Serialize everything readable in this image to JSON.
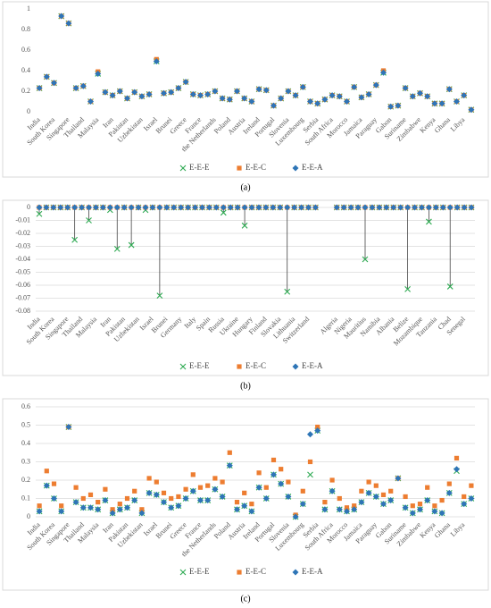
{
  "chart_data": [
    {
      "type": "scatter",
      "caption": "(a)",
      "grid": false,
      "ylim": [
        0,
        1
      ],
      "yticks": [
        0,
        0.2,
        0.4,
        0.6,
        0.8,
        1
      ],
      "categories": [
        "India",
        null,
        "South Korea",
        null,
        "Singapore",
        null,
        "Thailand",
        null,
        "Malaysia",
        null,
        "Iran",
        null,
        "Pakistan",
        null,
        "Uzbekistan",
        null,
        "Israel",
        null,
        "Brunei",
        null,
        "Greece",
        null,
        "France",
        null,
        "the Netherlands",
        null,
        "Poland",
        null,
        "Austria",
        null,
        "Ireland",
        null,
        "Portugal",
        null,
        "Slovenia",
        null,
        "Luxembourg",
        null,
        "Serbia",
        null,
        "South Africa",
        null,
        "Morocco",
        null,
        "Jamaica",
        null,
        "Paraguay",
        null,
        "Gabon",
        null,
        "Suriname",
        null,
        "Zimbabwe",
        null,
        "Kenya",
        null,
        "Ghana",
        null,
        "Libya",
        null
      ],
      "series": [
        {
          "name": "E-E-E",
          "color": "#2eaa52",
          "values": [
            0.23,
            0.34,
            0.28,
            0.93,
            0.86,
            0.23,
            0.25,
            0.1,
            0.37,
            0.19,
            0.16,
            0.2,
            0.13,
            0.19,
            0.15,
            0.17,
            0.49,
            0.18,
            0.19,
            0.23,
            0.29,
            0.17,
            0.16,
            0.17,
            0.2,
            0.13,
            0.12,
            0.2,
            0.13,
            0.1,
            0.22,
            0.21,
            0.06,
            0.13,
            0.2,
            0.16,
            0.24,
            0.1,
            0.08,
            0.12,
            0.16,
            0.15,
            0.1,
            0.24,
            0.14,
            0.17,
            0.26,
            0.38,
            0.05,
            0.06,
            0.23,
            0.15,
            0.18,
            0.15,
            0.08,
            0.08,
            0.22,
            0.1,
            0.16,
            0.02
          ]
        },
        {
          "name": "E-E-C",
          "color": "#ed7d31",
          "values": [
            0.23,
            0.34,
            0.28,
            0.93,
            0.86,
            0.23,
            0.25,
            0.1,
            0.39,
            0.19,
            0.16,
            0.2,
            0.13,
            0.19,
            0.15,
            0.17,
            0.51,
            0.18,
            0.19,
            0.23,
            0.29,
            0.17,
            0.16,
            0.17,
            0.2,
            0.13,
            0.12,
            0.2,
            0.13,
            0.1,
            0.22,
            0.21,
            0.06,
            0.13,
            0.2,
            0.16,
            0.24,
            0.1,
            0.08,
            0.12,
            0.16,
            0.15,
            0.1,
            0.24,
            0.14,
            0.17,
            0.26,
            0.4,
            0.05,
            0.06,
            0.23,
            0.15,
            0.18,
            0.15,
            0.08,
            0.08,
            0.22,
            0.1,
            0.16,
            0.02
          ]
        },
        {
          "name": "E-E-A",
          "color": "#2e75b6",
          "values": [
            0.23,
            0.34,
            0.28,
            0.93,
            0.86,
            0.23,
            0.25,
            0.1,
            0.37,
            0.19,
            0.16,
            0.2,
            0.13,
            0.19,
            0.15,
            0.17,
            0.49,
            0.18,
            0.19,
            0.23,
            0.29,
            0.17,
            0.16,
            0.17,
            0.2,
            0.13,
            0.12,
            0.2,
            0.13,
            0.1,
            0.22,
            0.21,
            0.06,
            0.13,
            0.2,
            0.16,
            0.24,
            0.1,
            0.08,
            0.12,
            0.16,
            0.15,
            0.1,
            0.24,
            0.14,
            0.17,
            0.26,
            0.38,
            0.05,
            0.06,
            0.23,
            0.15,
            0.18,
            0.15,
            0.08,
            0.08,
            0.22,
            0.1,
            0.16,
            0.02
          ]
        }
      ]
    },
    {
      "type": "scatter",
      "caption": "(b)",
      "grid": true,
      "drop_lines": true,
      "ylim": [
        -0.08,
        0
      ],
      "yticks": [
        0,
        -0.01,
        -0.02,
        -0.03,
        -0.04,
        -0.05,
        -0.06,
        -0.07,
        -0.08
      ],
      "categories": [
        "India",
        null,
        "South Korea",
        null,
        "Singapore",
        null,
        "Thailand",
        null,
        "Malaysia",
        null,
        "Iran",
        null,
        "Pakistan",
        null,
        "Uzbekistan",
        null,
        "Israel",
        null,
        "Brunei",
        null,
        "Germany",
        null,
        "Italy",
        null,
        "Spain",
        null,
        "Russia",
        null,
        "Ukraine",
        null,
        "Hungary",
        null,
        "Finland",
        null,
        "Slovakia",
        null,
        "Lithuania",
        null,
        "Switzerland",
        null,
        null,
        null,
        "Algeria",
        null,
        "Nigeria",
        null,
        "Mauritius",
        null,
        "Namibia",
        null,
        "Albania",
        null,
        "Belize",
        null,
        "Mozambique",
        null,
        "Tanzania",
        null,
        "Chad",
        null,
        "Senegal",
        null
      ],
      "series": [
        {
          "name": "E-E-E",
          "color": "#2eaa52",
          "values": [
            -0.005,
            0,
            0,
            0,
            0,
            -0.025,
            0,
            -0.01,
            0,
            0,
            -0.002,
            -0.032,
            0,
            -0.029,
            0,
            -0.002,
            0,
            -0.068,
            0,
            0,
            0,
            0,
            0,
            0,
            0,
            0,
            -0.004,
            0,
            0,
            -0.014,
            0,
            0,
            0,
            0,
            0,
            -0.065,
            0,
            0,
            0,
            0,
            null,
            null,
            0,
            0,
            0,
            0,
            -0.04,
            0,
            0,
            0,
            0,
            0,
            -0.063,
            0,
            0,
            -0.011,
            0,
            0,
            -0.061,
            0,
            0,
            0
          ]
        },
        {
          "name": "E-E-C",
          "color": "#ed7d31",
          "values": [
            0,
            0,
            0,
            0,
            0,
            0,
            0,
            0,
            0,
            0,
            0,
            0,
            0,
            0,
            0,
            0,
            0,
            0,
            0,
            0,
            0,
            0,
            0,
            0,
            0,
            0,
            0,
            0,
            0,
            0,
            0,
            0,
            0,
            0,
            0,
            0,
            0,
            0,
            0,
            0,
            null,
            null,
            0,
            0,
            0,
            0,
            0,
            0,
            0,
            0,
            0,
            0,
            0,
            0,
            0,
            0,
            0,
            0,
            0,
            0,
            0,
            0
          ]
        },
        {
          "name": "E-E-A",
          "color": "#2e75b6",
          "values": [
            0,
            0,
            0,
            0,
            0,
            0,
            0,
            0,
            0,
            0,
            0,
            0,
            0,
            0,
            0,
            0,
            0,
            0,
            0,
            0,
            0,
            0,
            0,
            0,
            0,
            0,
            0,
            0,
            0,
            0,
            0,
            0,
            0,
            0,
            0,
            0,
            0,
            0,
            0,
            0,
            null,
            null,
            0,
            0,
            0,
            0,
            0,
            0,
            0,
            0,
            0,
            0,
            0,
            0,
            0,
            0,
            0,
            0,
            0,
            0,
            0,
            0
          ]
        }
      ]
    },
    {
      "type": "scatter",
      "caption": "(c)",
      "grid": true,
      "ylim": [
        0,
        0.6
      ],
      "yticks": [
        0,
        0.1,
        0.2,
        0.3,
        0.4,
        0.5,
        0.6
      ],
      "categories": [
        "India",
        null,
        "South Korea",
        null,
        "Singapore",
        null,
        "Thailand",
        null,
        "Malaysia",
        null,
        "Iran",
        null,
        "Pakistan",
        null,
        "Uzbekistan",
        null,
        "Israel",
        null,
        "Brunei",
        null,
        "Greece",
        null,
        "France",
        null,
        "the Netherlands",
        null,
        "Poland",
        null,
        "Austria",
        null,
        "Ireland",
        null,
        "Portugal",
        null,
        "Slovenia",
        null,
        "Luxembourg",
        null,
        "Serbia",
        null,
        "South Africa",
        null,
        "Morocco",
        null,
        "Jamaica",
        null,
        "Paraguay",
        null,
        "Gabon",
        null,
        "Suriname",
        null,
        "Zimbabwe",
        null,
        "Kenya",
        null,
        "Ghana",
        null,
        "Libya",
        null
      ],
      "series": [
        {
          "name": "E-E-E",
          "color": "#2eaa52",
          "values": [
            0.03,
            0.17,
            0.1,
            0.03,
            0.49,
            0.08,
            0.05,
            0.05,
            0.04,
            0.09,
            0.02,
            0.04,
            0.05,
            0.09,
            0.02,
            0.13,
            0.12,
            0.08,
            0.05,
            0.06,
            0.1,
            0.14,
            0.09,
            0.09,
            0.15,
            0.11,
            0.28,
            0.04,
            0.06,
            0.03,
            0.16,
            0.1,
            0.23,
            0.18,
            0.11,
            0,
            0.07,
            0.23,
            0.47,
            0.04,
            0.14,
            0.04,
            0.03,
            0.04,
            0.08,
            0.13,
            0.11,
            0.07,
            0.09,
            0.21,
            0.05,
            0.02,
            0.04,
            0.09,
            0.03,
            0.02,
            0.13,
            0.25,
            0.07,
            0.1
          ]
        },
        {
          "name": "E-E-C",
          "color": "#ed7d31",
          "values": [
            0.06,
            0.25,
            0.18,
            0.06,
            0.49,
            0.16,
            0.1,
            0.12,
            0.08,
            0.15,
            0.04,
            0.07,
            0.1,
            0.14,
            0.04,
            0.21,
            0.19,
            0.13,
            0.1,
            0.11,
            0.15,
            0.23,
            0.16,
            0.17,
            0.21,
            0.19,
            0.35,
            0.08,
            0.13,
            0.07,
            0.24,
            0.16,
            0.31,
            0.26,
            0.19,
            0.01,
            0.14,
            0.3,
            0.49,
            0.08,
            0.2,
            0.1,
            0.05,
            0.06,
            0.14,
            0.19,
            0.17,
            0.12,
            0.14,
            0.21,
            0.11,
            0.06,
            0.07,
            0.16,
            0.06,
            0.09,
            0.18,
            0.32,
            0.11,
            0.17
          ]
        },
        {
          "name": "E-E-A",
          "color": "#2e75b6",
          "values": [
            0.03,
            0.17,
            0.1,
            0.03,
            0.49,
            0.08,
            0.05,
            0.05,
            0.04,
            0.09,
            0.02,
            0.04,
            0.05,
            0.09,
            0.02,
            0.13,
            0.12,
            0.08,
            0.05,
            0.06,
            0.1,
            0.14,
            0.09,
            0.09,
            0.15,
            0.11,
            0.28,
            0.04,
            0.06,
            0.03,
            0.16,
            0.1,
            0.23,
            0.18,
            0.11,
            0,
            0.07,
            0.45,
            0.47,
            0.04,
            0.14,
            0.04,
            0.03,
            0.04,
            0.08,
            0.13,
            0.11,
            0.07,
            0.09,
            0.21,
            0.05,
            0.02,
            0.04,
            0.09,
            0.03,
            0.02,
            0.13,
            0.26,
            0.07,
            0.1
          ]
        }
      ]
    }
  ]
}
